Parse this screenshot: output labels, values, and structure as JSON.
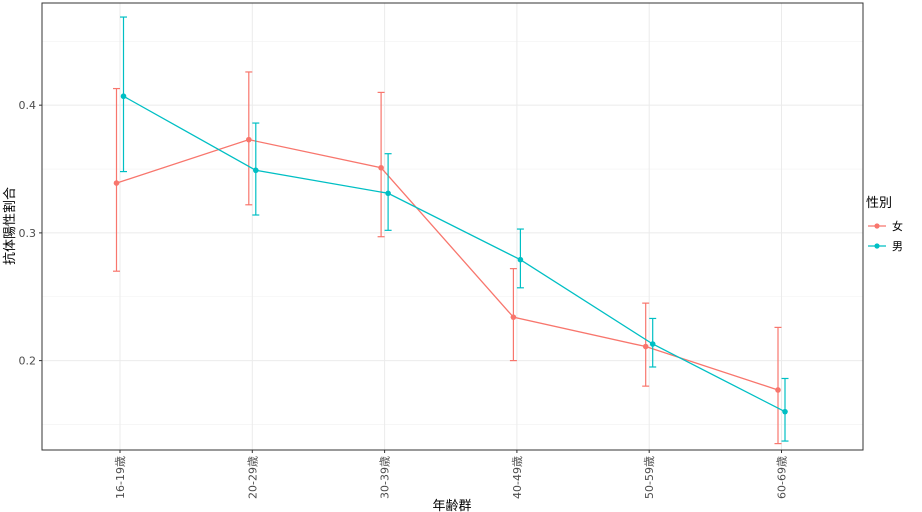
{
  "chart_data": {
    "type": "line",
    "xlabel": "年齢群",
    "ylabel": "抗体陽性割合",
    "categories": [
      "16-19歳",
      "20-29歳",
      "30-39歳",
      "40-49歳",
      "50-59歳",
      "60-69歳"
    ],
    "ylim": [
      0.13,
      0.48
    ],
    "yticks": [
      0.2,
      0.3,
      0.4
    ],
    "ytick_labels": [
      "0.2",
      "0.3",
      "0.4"
    ],
    "grid": true,
    "legend": {
      "title": "性別",
      "position": "right"
    },
    "series": [
      {
        "name": "女",
        "color": "#F8766D",
        "values": [
          0.339,
          0.373,
          0.351,
          0.234,
          0.211,
          0.177
        ],
        "lower": [
          0.27,
          0.322,
          0.297,
          0.2,
          0.18,
          0.135
        ],
        "upper": [
          0.413,
          0.426,
          0.41,
          0.272,
          0.245,
          0.226
        ]
      },
      {
        "name": "男",
        "color": "#00BFC4",
        "values": [
          0.407,
          0.349,
          0.331,
          0.279,
          0.213,
          0.16
        ],
        "lower": [
          0.348,
          0.314,
          0.302,
          0.257,
          0.195,
          0.137
        ],
        "upper": [
          0.469,
          0.386,
          0.362,
          0.303,
          0.233,
          0.186
        ]
      }
    ]
  }
}
